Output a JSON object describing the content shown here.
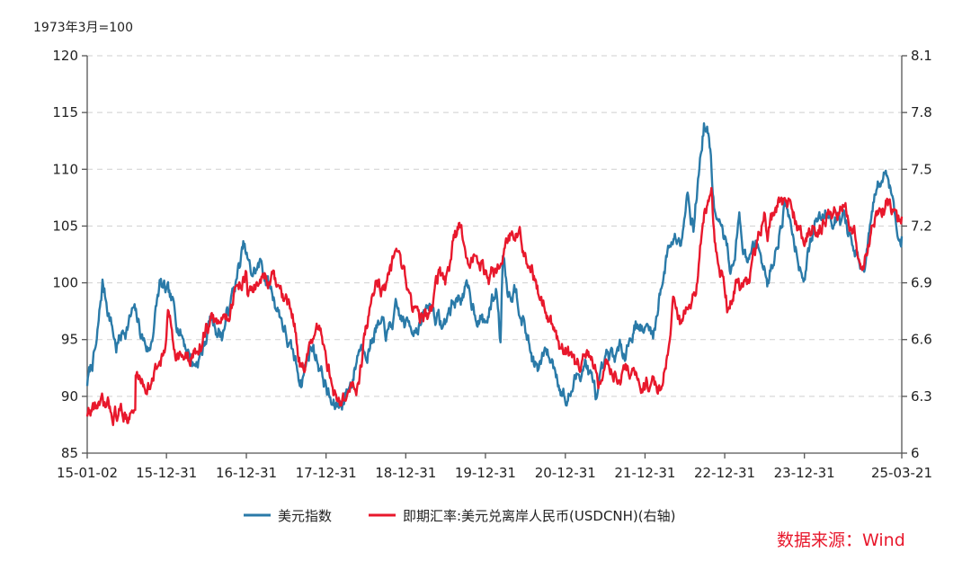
{
  "chart_data": {
    "type": "line",
    "unit_label": "1973年3月=100",
    "source": "数据来源：Wind",
    "source_color": "#e8182c",
    "x_tick_labels": [
      "15-01-02",
      "15-12-31",
      "16-12-31",
      "17-12-31",
      "18-12-31",
      "19-12-31",
      "20-12-31",
      "21-12-31",
      "22-12-31",
      "23-12-31",
      "25-03-21"
    ],
    "x_tick_dates": [
      "2015-01-02",
      "2015-12-31",
      "2016-12-31",
      "2017-12-31",
      "2018-12-31",
      "2019-12-31",
      "2020-12-31",
      "2021-12-31",
      "2022-12-31",
      "2023-12-31",
      "2025-03-21"
    ],
    "x_range": [
      "2015-01-02",
      "2025-03-21"
    ],
    "y_left": {
      "min": 85,
      "max": 120,
      "ticks": [
        85,
        90,
        95,
        100,
        105,
        110,
        115,
        120
      ]
    },
    "y_right": {
      "min": 6.0,
      "max": 8.1,
      "ticks": [
        "6",
        "6.3",
        "6.6",
        "6.9",
        "7.2",
        "7.5",
        "7.8",
        "8.1"
      ],
      "tick_values": [
        6.0,
        6.3,
        6.6,
        6.9,
        7.2,
        7.5,
        7.8,
        8.1
      ]
    },
    "grid": "horizontal-dashed",
    "legend_position": "bottom",
    "series": [
      {
        "name": "美元指数",
        "axis": "left",
        "color": "#2a7aa8",
        "points": [
          [
            "2015-01-02",
            91.2
          ],
          [
            "2015-02-15",
            94.5
          ],
          [
            "2015-03-13",
            99.8
          ],
          [
            "2015-04-20",
            96.8
          ],
          [
            "2015-05-15",
            94.4
          ],
          [
            "2015-06-20",
            95.8
          ],
          [
            "2015-08-01",
            97.5
          ],
          [
            "2015-09-10",
            95.2
          ],
          [
            "2015-10-15",
            94.0
          ],
          [
            "2015-11-30",
            99.8
          ],
          [
            "2016-01-10",
            98.5
          ],
          [
            "2016-02-20",
            96.6
          ],
          [
            "2016-03-30",
            94.6
          ],
          [
            "2016-05-05",
            92.8
          ],
          [
            "2016-06-15",
            94.1
          ],
          [
            "2016-07-20",
            96.9
          ],
          [
            "2016-09-10",
            95.5
          ],
          [
            "2016-10-25",
            98.6
          ],
          [
            "2016-12-20",
            103.0
          ],
          [
            "2017-01-20",
            100.6
          ],
          [
            "2017-03-10",
            101.6
          ],
          [
            "2017-04-20",
            99.5
          ],
          [
            "2017-06-10",
            97.0
          ],
          [
            "2017-07-20",
            94.0
          ],
          [
            "2017-09-08",
            91.5
          ],
          [
            "2017-10-25",
            94.6
          ],
          [
            "2017-11-30",
            93.0
          ],
          [
            "2018-01-25",
            89.2
          ],
          [
            "2018-02-16",
            88.9
          ],
          [
            "2018-03-20",
            89.8
          ],
          [
            "2018-04-30",
            91.5
          ],
          [
            "2018-06-01",
            94.5
          ],
          [
            "2018-07-20",
            94.7
          ],
          [
            "2018-08-15",
            96.3
          ],
          [
            "2018-10-10",
            95.3
          ],
          [
            "2018-11-15",
            97.2
          ],
          [
            "2018-12-31",
            96.2
          ],
          [
            "2019-03-15",
            96.6
          ],
          [
            "2019-04-25",
            98.1
          ],
          [
            "2019-06-20",
            96.0
          ],
          [
            "2019-08-01",
            98.1
          ],
          [
            "2019-09-30",
            99.4
          ],
          [
            "2019-11-10",
            97.8
          ],
          [
            "2019-12-31",
            96.4
          ],
          [
            "2020-02-20",
            99.5
          ],
          [
            "2020-03-09",
            94.9
          ],
          [
            "2020-03-20",
            103.0
          ],
          [
            "2020-04-15",
            99.5
          ],
          [
            "2020-05-20",
            99.9
          ],
          [
            "2020-06-20",
            97.0
          ],
          [
            "2020-07-31",
            93.5
          ],
          [
            "2020-09-01",
            92.1
          ],
          [
            "2020-10-01",
            94.0
          ],
          [
            "2020-11-15",
            92.5
          ],
          [
            "2020-12-31",
            89.9
          ],
          [
            "2021-01-06",
            89.5
          ],
          [
            "2021-03-31",
            93.3
          ],
          [
            "2021-05-25",
            89.7
          ],
          [
            "2021-07-07",
            92.6
          ],
          [
            "2021-08-20",
            93.5
          ],
          [
            "2021-09-30",
            94.3
          ],
          [
            "2021-11-24",
            96.8
          ],
          [
            "2021-12-31",
            95.7
          ],
          [
            "2022-02-15",
            95.8
          ],
          [
            "2022-03-07",
            99.2
          ],
          [
            "2022-04-28",
            103.9
          ],
          [
            "2022-06-10",
            104.2
          ],
          [
            "2022-07-14",
            108.5
          ],
          [
            "2022-08-10",
            105.2
          ],
          [
            "2022-09-27",
            114.1
          ],
          [
            "2022-10-20",
            112.9
          ],
          [
            "2022-11-15",
            106.3
          ],
          [
            "2022-12-31",
            103.5
          ],
          [
            "2023-02-01",
            101.2
          ],
          [
            "2023-03-08",
            105.6
          ],
          [
            "2023-04-15",
            101.2
          ],
          [
            "2023-05-31",
            104.3
          ],
          [
            "2023-07-14",
            99.6
          ],
          [
            "2023-10-03",
            107.2
          ],
          [
            "2023-12-27",
            100.9
          ],
          [
            "2024-02-14",
            104.9
          ],
          [
            "2024-04-16",
            106.5
          ],
          [
            "2024-06-30",
            105.8
          ],
          [
            "2024-08-15",
            102.4
          ],
          [
            "2024-09-27",
            100.4
          ],
          [
            "2024-11-22",
            107.8
          ],
          [
            "2025-01-13",
            109.9
          ],
          [
            "2025-02-15",
            106.8
          ],
          [
            "2025-03-07",
            103.8
          ],
          [
            "2025-03-21",
            104.1
          ]
        ]
      },
      {
        "name": "即期汇率:美元兑离岸人民币(USDCNH)(右轴)",
        "axis": "right",
        "color": "#e8182c",
        "points": [
          [
            "2015-01-02",
            6.21
          ],
          [
            "2015-02-15",
            6.25
          ],
          [
            "2015-03-20",
            6.22
          ],
          [
            "2015-08-10",
            6.21
          ],
          [
            "2015-08-12",
            6.4
          ],
          [
            "2015-09-15",
            6.38
          ],
          [
            "2015-10-20",
            6.36
          ],
          [
            "2015-12-31",
            6.57
          ],
          [
            "2016-01-07",
            6.72
          ],
          [
            "2016-02-15",
            6.55
          ],
          [
            "2016-04-15",
            6.47
          ],
          [
            "2016-05-31",
            6.58
          ],
          [
            "2016-07-20",
            6.69
          ],
          [
            "2016-08-30",
            6.67
          ],
          [
            "2016-10-10",
            6.75
          ],
          [
            "2016-11-20",
            6.88
          ],
          [
            "2016-12-31",
            6.96
          ],
          [
            "2017-01-05",
            6.82
          ],
          [
            "2017-03-10",
            6.93
          ],
          [
            "2017-04-30",
            6.9
          ],
          [
            "2017-06-15",
            6.8
          ],
          [
            "2017-07-31",
            6.72
          ],
          [
            "2017-09-08",
            6.47
          ],
          [
            "2017-11-30",
            6.61
          ],
          [
            "2017-12-31",
            6.51
          ],
          [
            "2018-02-15",
            6.29
          ],
          [
            "2018-03-31",
            6.28
          ],
          [
            "2018-04-30",
            6.33
          ],
          [
            "2018-05-31",
            6.4
          ],
          [
            "2018-06-30",
            6.62
          ],
          [
            "2018-08-15",
            6.9
          ],
          [
            "2018-09-30",
            6.87
          ],
          [
            "2018-10-31",
            6.98
          ],
          [
            "2018-11-30",
            6.95
          ],
          [
            "2018-12-31",
            6.87
          ],
          [
            "2019-02-28",
            6.7
          ],
          [
            "2019-04-15",
            6.72
          ],
          [
            "2019-05-31",
            6.93
          ],
          [
            "2019-06-30",
            6.87
          ],
          [
            "2019-08-05",
            7.1
          ],
          [
            "2019-09-03",
            7.18
          ],
          [
            "2019-10-15",
            7.05
          ],
          [
            "2019-11-15",
            7.03
          ],
          [
            "2019-12-31",
            6.96
          ],
          [
            "2020-01-15",
            6.87
          ],
          [
            "2020-02-28",
            7.03
          ],
          [
            "2020-03-20",
            7.12
          ],
          [
            "2020-05-27",
            7.18
          ],
          [
            "2020-06-30",
            7.07
          ],
          [
            "2020-07-31",
            6.98
          ],
          [
            "2020-08-31",
            6.85
          ],
          [
            "2020-09-30",
            6.8
          ],
          [
            "2020-10-31",
            6.68
          ],
          [
            "2020-11-30",
            6.58
          ],
          [
            "2020-12-31",
            6.51
          ],
          [
            "2021-02-15",
            6.42
          ],
          [
            "2021-03-31",
            6.56
          ],
          [
            "2021-05-31",
            6.37
          ],
          [
            "2021-06-30",
            6.48
          ],
          [
            "2021-07-31",
            6.48
          ],
          [
            "2021-09-30",
            6.44
          ],
          [
            "2021-10-31",
            6.4
          ],
          [
            "2021-12-31",
            6.36
          ],
          [
            "2022-01-31",
            6.36
          ],
          [
            "2022-03-15",
            6.38
          ],
          [
            "2022-04-20",
            6.52
          ],
          [
            "2022-05-12",
            6.8
          ],
          [
            "2022-06-15",
            6.68
          ],
          [
            "2022-07-31",
            6.76
          ],
          [
            "2022-08-31",
            6.9
          ],
          [
            "2022-09-28",
            7.25
          ],
          [
            "2022-10-31",
            7.33
          ],
          [
            "2022-11-15",
            7.07
          ],
          [
            "2022-12-31",
            6.9
          ],
          [
            "2023-01-20",
            6.75
          ],
          [
            "2023-03-01",
            6.95
          ],
          [
            "2023-04-15",
            6.88
          ],
          [
            "2023-05-31",
            7.1
          ],
          [
            "2023-06-30",
            7.26
          ],
          [
            "2023-07-15",
            7.15
          ],
          [
            "2023-09-08",
            7.34
          ],
          [
            "2023-10-31",
            7.32
          ],
          [
            "2023-12-31",
            7.13
          ],
          [
            "2024-02-15",
            7.21
          ],
          [
            "2024-04-15",
            7.25
          ],
          [
            "2024-06-30",
            7.29
          ],
          [
            "2024-08-15",
            7.16
          ],
          [
            "2024-09-27",
            7.01
          ],
          [
            "2024-11-15",
            7.22
          ],
          [
            "2025-01-13",
            7.36
          ],
          [
            "2025-02-15",
            7.28
          ],
          [
            "2025-03-21",
            7.25
          ]
        ]
      }
    ]
  }
}
